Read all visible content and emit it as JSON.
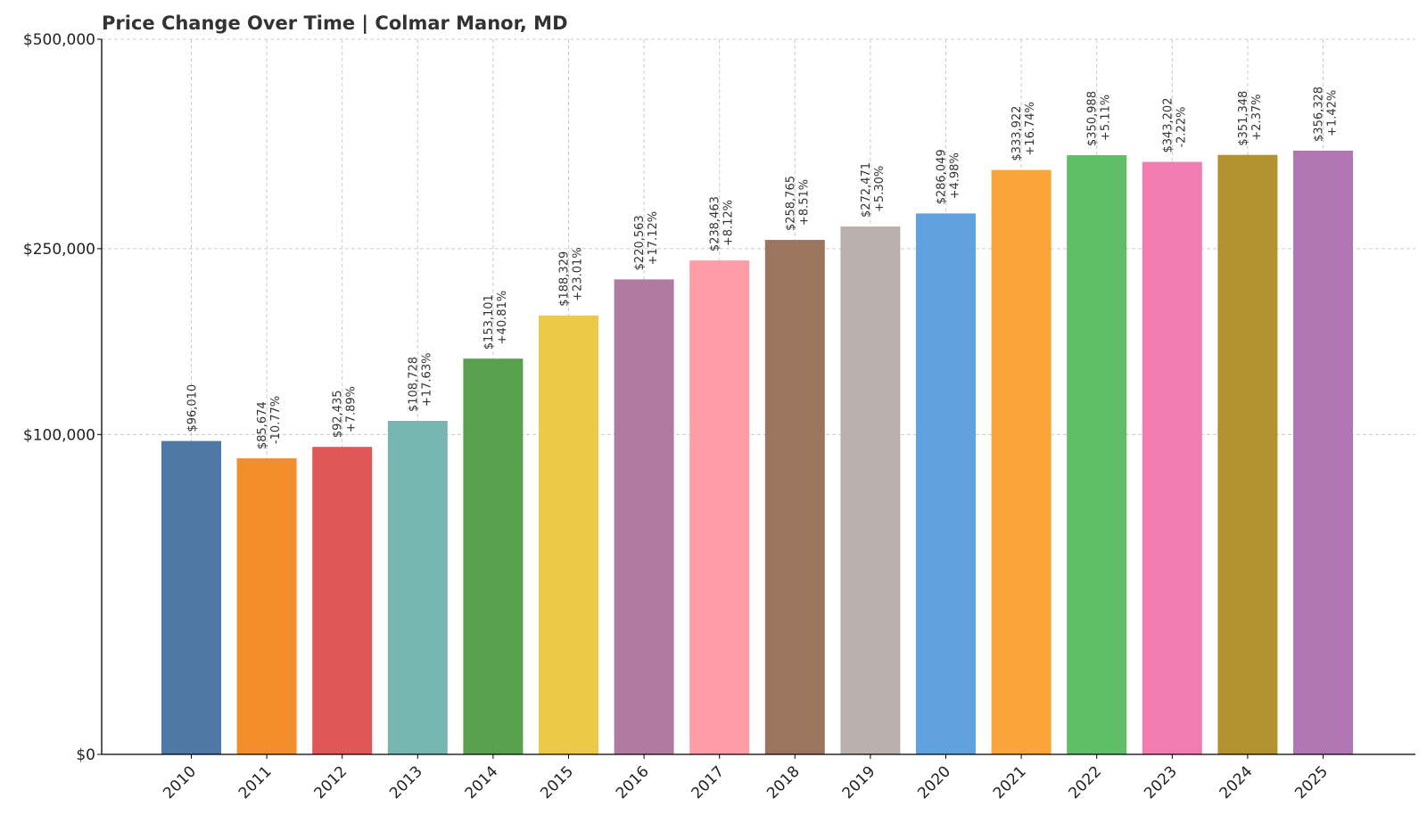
{
  "chart_data": {
    "type": "bar",
    "title": "Price Change Over Time | Colmar Manor, MD",
    "xlabel": "",
    "ylabel": "",
    "yscale": "sqrt",
    "ylim": [
      0,
      500000
    ],
    "yticks": [
      0,
      100000,
      250000,
      500000
    ],
    "ytick_labels": [
      "$0",
      "$100,000",
      "$250,000",
      "$500,000"
    ],
    "grid": true,
    "categories": [
      "2010",
      "2011",
      "2012",
      "2013",
      "2014",
      "2015",
      "2016",
      "2017",
      "2018",
      "2019",
      "2020",
      "2021",
      "2022",
      "2023",
      "2024",
      "2025"
    ],
    "values": [
      96010,
      85674,
      92435,
      108728,
      153101,
      188329,
      220563,
      238463,
      258765,
      272471,
      286049,
      333922,
      350988,
      343202,
      351348,
      356328
    ],
    "value_labels": [
      "$96,010",
      "$85,674",
      "$92,435",
      "$108,728",
      "$153,101",
      "$188,329",
      "$220,563",
      "$238,463",
      "$258,765",
      "$272,471",
      "$286,049",
      "$333,922",
      "$350,988",
      "$343,202",
      "$351,348",
      "$356,328"
    ],
    "change_labels": [
      "",
      "-10.77%",
      "+7.89%",
      "+17.63%",
      "+40.81%",
      "+23.01%",
      "+17.12%",
      "+8.12%",
      "+8.51%",
      "+5.30%",
      "+4.98%",
      "+16.74%",
      "+5.11%",
      "-2.22%",
      "+2.37%",
      "+1.42%"
    ],
    "colors": [
      "#4e79a7",
      "#f28e2b",
      "#e15759",
      "#76b7b2",
      "#59a14f",
      "#edc948",
      "#b07aa1",
      "#ff9da7",
      "#9c755f",
      "#bab0ac",
      "#5fa2dd",
      "#faa43a",
      "#60bd68",
      "#f17cb0",
      "#b2912f",
      "#b276b2"
    ]
  }
}
